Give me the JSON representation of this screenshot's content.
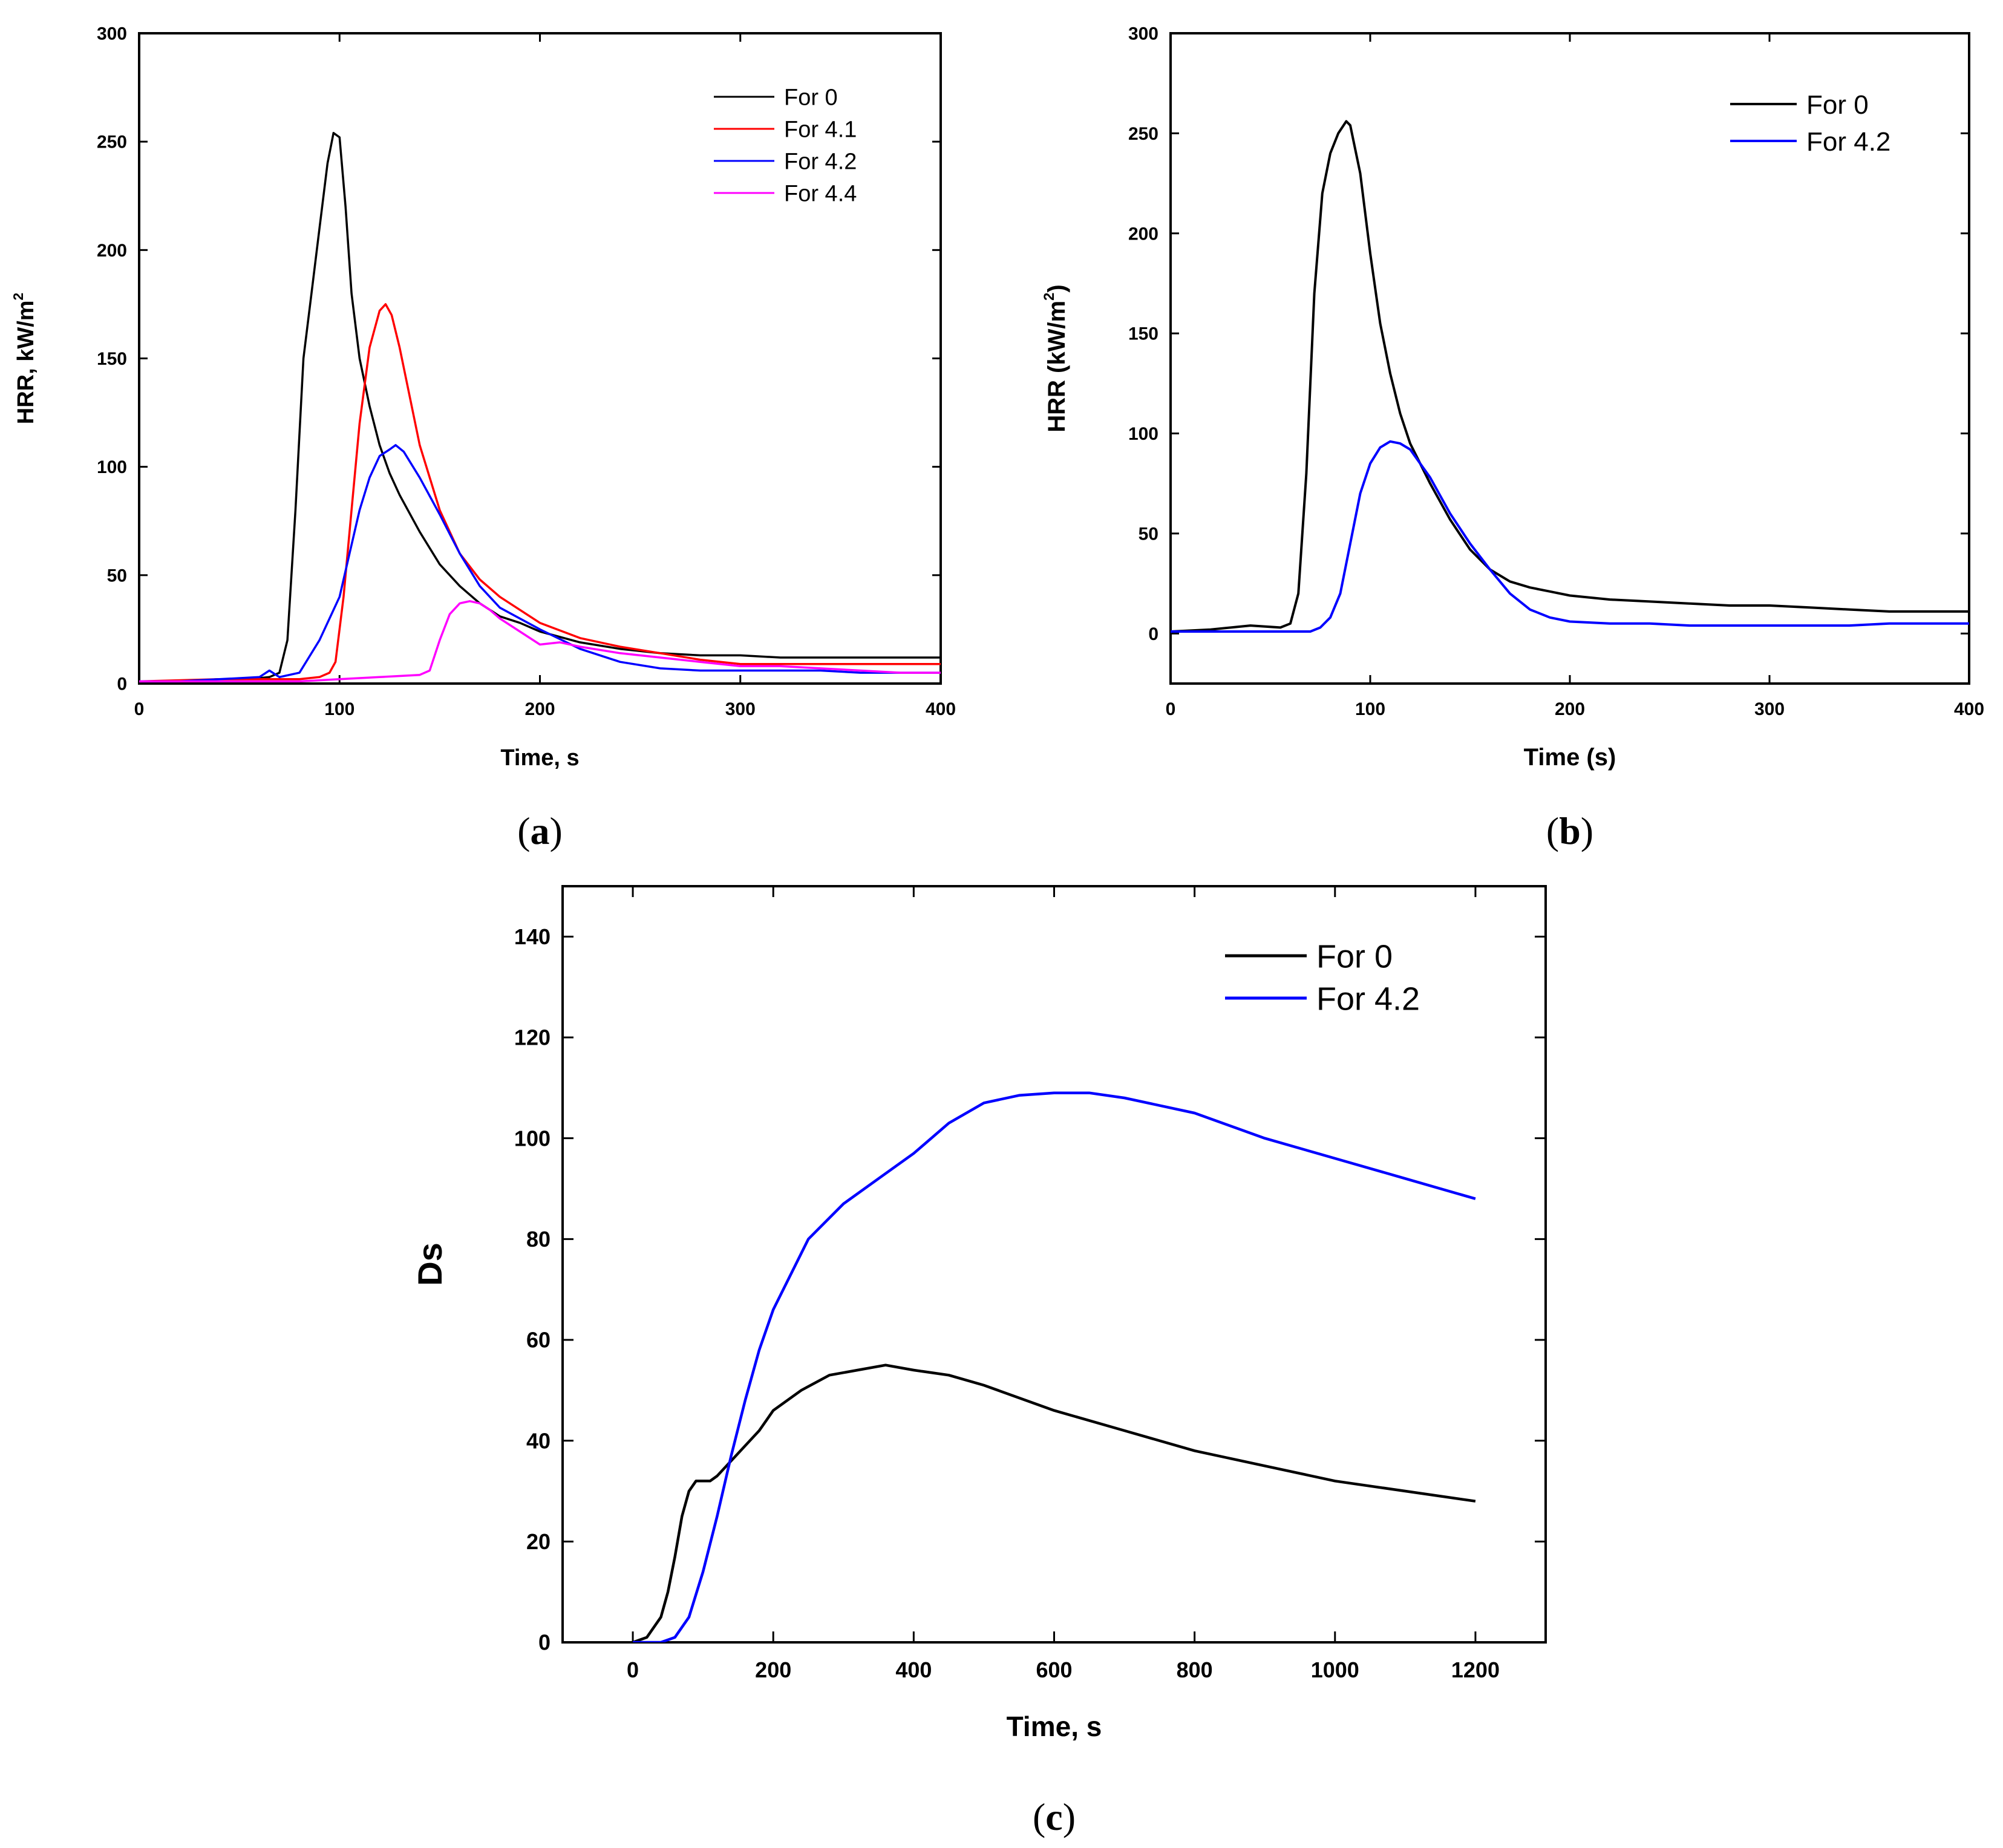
{
  "chart_data": [
    {
      "panel": "a",
      "caption": [
        "(",
        "a",
        ")"
      ],
      "type": "line",
      "xlabel": "Time, s",
      "ylabel": "HRR, kW/m",
      "ylabel_sup": "2",
      "xlim": [
        0,
        400
      ],
      "ylim": [
        0,
        300
      ],
      "xticks": [
        0,
        100,
        200,
        300,
        400
      ],
      "yticks": [
        0,
        50,
        100,
        150,
        200,
        250,
        300
      ],
      "grid": false,
      "legend": "top-right",
      "series": [
        {
          "name": "For 0",
          "color": "#000000",
          "x": [
            0,
            20,
            40,
            55,
            65,
            70,
            74,
            78,
            82,
            86,
            90,
            94,
            97,
            100,
            103,
            106,
            110,
            115,
            120,
            125,
            130,
            140,
            150,
            160,
            170,
            180,
            190,
            200,
            220,
            240,
            260,
            280,
            300,
            320,
            340,
            360,
            380,
            400
          ],
          "y": [
            1,
            1,
            2,
            2,
            3,
            5,
            20,
            80,
            150,
            180,
            210,
            240,
            254,
            252,
            220,
            180,
            150,
            128,
            110,
            97,
            87,
            70,
            55,
            45,
            37,
            31,
            28,
            24,
            19,
            16,
            14,
            13,
            13,
            12,
            12,
            12,
            12,
            12
          ]
        },
        {
          "name": "For 4.1",
          "color": "#ff0000",
          "x": [
            0,
            40,
            80,
            90,
            95,
            98,
            102,
            106,
            110,
            115,
            120,
            123,
            126,
            130,
            140,
            150,
            160,
            170,
            180,
            190,
            200,
            220,
            240,
            260,
            280,
            300,
            320,
            340,
            360,
            380,
            400
          ],
          "y": [
            1,
            2,
            2,
            3,
            5,
            10,
            40,
            80,
            120,
            155,
            172,
            175,
            170,
            155,
            110,
            80,
            60,
            48,
            40,
            34,
            28,
            21,
            17,
            14,
            11,
            9,
            9,
            9,
            9,
            9,
            9
          ]
        },
        {
          "name": "For 4.2",
          "color": "#0000ff",
          "x": [
            0,
            20,
            40,
            60,
            65,
            70,
            80,
            90,
            100,
            105,
            110,
            115,
            120,
            125,
            128,
            132,
            140,
            150,
            160,
            170,
            180,
            200,
            220,
            240,
            260,
            280,
            300,
            320,
            340,
            360,
            380,
            400
          ],
          "y": [
            1,
            1,
            2,
            3,
            6,
            3,
            5,
            20,
            40,
            60,
            80,
            95,
            105,
            108,
            110,
            107,
            95,
            78,
            60,
            45,
            35,
            25,
            16,
            10,
            7,
            6,
            6,
            6,
            6,
            5,
            5,
            5
          ]
        },
        {
          "name": "For 4.4",
          "color": "#ff00ff",
          "x": [
            0,
            40,
            80,
            100,
            120,
            140,
            145,
            150,
            155,
            160,
            165,
            170,
            175,
            180,
            190,
            200,
            210,
            220,
            240,
            260,
            280,
            300,
            320,
            340,
            360,
            380,
            400
          ],
          "y": [
            1,
            1,
            1,
            2,
            3,
            4,
            6,
            20,
            32,
            37,
            38,
            37,
            34,
            30,
            24,
            18,
            19,
            17,
            14,
            12,
            10,
            8,
            8,
            7,
            6,
            5,
            5
          ]
        }
      ]
    },
    {
      "panel": "b",
      "caption": [
        "(",
        "b",
        ")"
      ],
      "type": "line",
      "xlabel": "Time (s)",
      "ylabel": "HRR (kW/m",
      "ylabel_sup": "2",
      "ylabel_suffix": ")",
      "xlim": [
        0,
        400
      ],
      "ylim": [
        -25,
        300
      ],
      "xticks": [
        0,
        100,
        200,
        300,
        400
      ],
      "yticks": [
        0,
        50,
        100,
        150,
        200,
        250,
        300
      ],
      "grid": false,
      "legend": "top-right",
      "series": [
        {
          "name": "For 0",
          "color": "#000000",
          "x": [
            0,
            20,
            40,
            55,
            60,
            64,
            68,
            72,
            76,
            80,
            84,
            88,
            90,
            95,
            100,
            105,
            110,
            115,
            120,
            130,
            140,
            150,
            160,
            170,
            180,
            190,
            200,
            220,
            240,
            260,
            280,
            300,
            320,
            340,
            360,
            380,
            400
          ],
          "y": [
            1,
            2,
            4,
            3,
            5,
            20,
            80,
            170,
            220,
            240,
            250,
            256,
            254,
            230,
            190,
            155,
            130,
            110,
            95,
            75,
            57,
            42,
            32,
            26,
            23,
            21,
            19,
            17,
            16,
            15,
            14,
            14,
            13,
            12,
            11,
            11,
            11
          ]
        },
        {
          "name": "For 4.2",
          "color": "#0000ff",
          "x": [
            0,
            40,
            70,
            75,
            80,
            85,
            90,
            95,
            100,
            105,
            110,
            115,
            120,
            130,
            140,
            150,
            160,
            170,
            180,
            190,
            200,
            220,
            240,
            260,
            280,
            300,
            320,
            340,
            360,
            380,
            400
          ],
          "y": [
            1,
            1,
            1,
            3,
            8,
            20,
            45,
            70,
            85,
            93,
            96,
            95,
            92,
            78,
            60,
            45,
            32,
            20,
            12,
            8,
            6,
            5,
            5,
            4,
            4,
            4,
            4,
            4,
            5,
            5,
            5
          ]
        }
      ]
    },
    {
      "panel": "c",
      "caption": [
        "(",
        "c",
        ")"
      ],
      "type": "line",
      "xlabel": "Time, s",
      "ylabel": "Ds",
      "xlim": [
        -100,
        1300
      ],
      "ylim": [
        0,
        150
      ],
      "xticks": [
        0,
        200,
        400,
        600,
        800,
        1000,
        1200
      ],
      "yticks": [
        0,
        20,
        40,
        60,
        80,
        100,
        120,
        140
      ],
      "grid": false,
      "legend": "top-right",
      "series": [
        {
          "name": "For 0",
          "color": "#000000",
          "x": [
            0,
            20,
            40,
            50,
            60,
            70,
            80,
            90,
            100,
            110,
            120,
            140,
            160,
            180,
            200,
            240,
            280,
            320,
            360,
            400,
            450,
            500,
            600,
            700,
            800,
            900,
            1000,
            1100,
            1200
          ],
          "y": [
            0,
            1,
            5,
            10,
            17,
            25,
            30,
            32,
            32,
            32,
            33,
            36,
            39,
            42,
            46,
            50,
            53,
            54,
            55,
            54,
            53,
            51,
            46,
            42,
            38,
            35,
            32,
            30,
            28
          ]
        },
        {
          "name": "For 4.2",
          "color": "#0000ff",
          "x": [
            0,
            40,
            60,
            80,
            100,
            120,
            140,
            160,
            180,
            200,
            250,
            300,
            350,
            400,
            450,
            500,
            550,
            600,
            650,
            700,
            800,
            900,
            1000,
            1100,
            1200
          ],
          "y": [
            0,
            0,
            1,
            5,
            14,
            25,
            37,
            48,
            58,
            66,
            80,
            87,
            92,
            97,
            103,
            107,
            108.5,
            109,
            109,
            108,
            105,
            100,
            96,
            92,
            88
          ]
        }
      ]
    }
  ]
}
